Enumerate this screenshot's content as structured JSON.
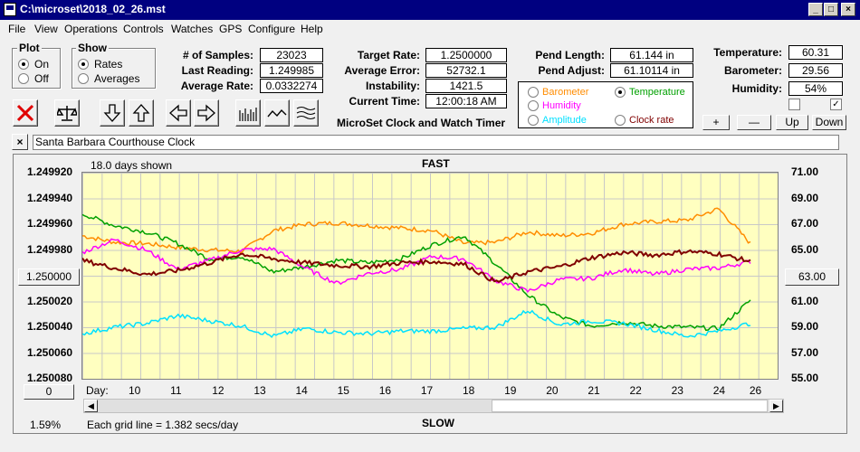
{
  "window": {
    "title": "C:\\microset\\2018_02_26.mst"
  },
  "menu": [
    "File",
    "View",
    "Operations",
    "Controls",
    "Watches",
    "GPS",
    "Configure",
    "Help"
  ],
  "plot_group": {
    "title": "Plot",
    "on": "On",
    "off": "Off",
    "selected": "On"
  },
  "show_group": {
    "title": "Show",
    "rates": "Rates",
    "averages": "Averages",
    "selected": "Rates"
  },
  "stats": {
    "samples_label": "# of Samples:",
    "samples": "23023",
    "last_label": "Last Reading:",
    "last": "1.249985",
    "avg_rate_label": "Average Rate:",
    "avg_rate": "0.0332274",
    "target_label": "Target Rate:",
    "target": "1.2500000",
    "avg_err_label": "Average Error:",
    "avg_err": "52732.1 min/day",
    "instab_label": "Instability:",
    "instab": "1421.5 mins/day",
    "time_label": "Current Time:",
    "time": "12:00:18 AM",
    "pend_len_label": "Pend Length:",
    "pend_len": "61.144 in",
    "pend_adj_label": "Pend Adjust:",
    "pend_adj": "61.10114 in",
    "temp_label": "Temperature:",
    "temp": "60.31",
    "baro_label": "Barometer:",
    "baro": "29.56",
    "hum_label": "Humidity:",
    "hum": "54%"
  },
  "app_caption": "MicroSet Clock and Watch Timer",
  "legend": {
    "barometer": "Barometer",
    "temperature": "Temperature",
    "humidity": "Humidity",
    "amplitude": "Amplitude",
    "clock_rate": "Clock rate",
    "selected": "Temperature"
  },
  "adjust_buttons": {
    "plus": "+",
    "minus": "—",
    "up": "Up",
    "down": "Down"
  },
  "clock_name": "Santa Barbara Courthouse Clock",
  "chart_data": {
    "type": "line",
    "title_top": "FAST",
    "title_bottom": "SLOW",
    "days_shown": "18.0 days shown",
    "grid_note": "Each grid line = 1.382 secs/day",
    "percent": "1.59%",
    "left_center_button": "1.250000",
    "right_center_button": "63.00",
    "bottom_left_button": "0",
    "x_axis_label": "Day:",
    "x_ticks": [
      "10",
      "11",
      "12",
      "13",
      "14",
      "15",
      "16",
      "17",
      "18",
      "19",
      "20",
      "21",
      "22",
      "23",
      "24",
      "26"
    ],
    "y_left_ticks": [
      "1.249920",
      "1.249940",
      "1.249960",
      "1.249980",
      "1.250000",
      "1.250020",
      "1.250040",
      "1.250060",
      "1.250080"
    ],
    "y_right_ticks": [
      "71.00",
      "69.00",
      "67.00",
      "65.00",
      "63.00",
      "61.00",
      "59.00",
      "57.00",
      "55.00"
    ],
    "y_right_range": [
      55,
      71
    ],
    "colors": {
      "barometer": "#ff8c00",
      "temperature": "#00a000",
      "humidity": "#ff00ff",
      "amplitude": "#00e0ff",
      "clock_rate": "#800000"
    },
    "series": [
      {
        "name": "Barometer",
        "values": [
          66.1,
          65.6,
          65.5,
          65.2,
          65.0,
          64.9,
          66.5,
          67.0,
          67.1,
          66.9,
          66.7,
          66.5,
          65.5,
          65.6,
          66.4,
          66.1,
          66.3,
          67.0,
          67.2,
          67.3,
          68.2,
          65.5
        ]
      },
      {
        "name": "Temperature",
        "values": [
          67.8,
          66.9,
          66.4,
          65.5,
          64.3,
          64.5,
          63.3,
          63.7,
          64.2,
          64.0,
          64.3,
          65.4,
          66.1,
          63.9,
          61.5,
          59.8,
          59.1,
          59.4,
          59.1,
          59.0,
          58.9,
          61.1
        ]
      },
      {
        "name": "Humidity",
        "values": [
          64.8,
          65.8,
          65.0,
          63.5,
          64.2,
          65.0,
          65.1,
          63.6,
          62.4,
          63.2,
          63.5,
          64.5,
          64.3,
          62.6,
          61.8,
          62.7,
          62.8,
          63.5,
          63.1,
          63.5,
          63.6,
          64.1
        ]
      },
      {
        "name": "Amplitude",
        "values": [
          58.5,
          59.0,
          59.3,
          59.9,
          59.5,
          59.1,
          58.3,
          58.9,
          58.6,
          58.5,
          58.7,
          58.7,
          58.9,
          59.0,
          60.3,
          59.2,
          59.5,
          59.3,
          58.8,
          58.3,
          58.7,
          59.3
        ]
      },
      {
        "name": "Clock rate",
        "values": [
          64.2,
          63.6,
          63.1,
          63.4,
          64.0,
          64.7,
          64.3,
          64.0,
          63.8,
          63.7,
          64.0,
          64.1,
          63.9,
          62.5,
          63.3,
          63.7,
          64.4,
          64.8,
          64.6,
          64.9,
          64.7,
          64.1
        ]
      }
    ]
  }
}
